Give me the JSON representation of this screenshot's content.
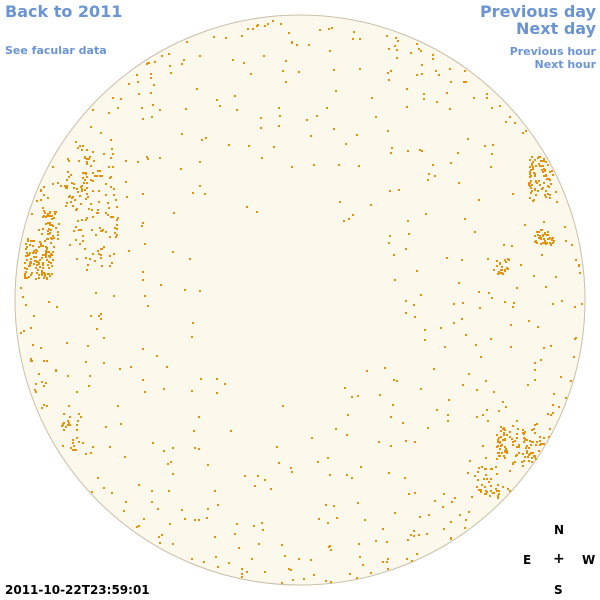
{
  "nav": {
    "back_label": "Back to 2011",
    "facular_label": "See facular data",
    "prev_day_label": "Previous day",
    "next_day_label": "Next day",
    "prev_hour_label": "Previous hour",
    "next_hour_label": "Next hour"
  },
  "compass": {
    "north": "N",
    "east": "E",
    "center": "+",
    "west": "W",
    "south": "S"
  },
  "timestamp": "2011-10-22T23:59:01",
  "colors": {
    "link": "#6a94d4",
    "disk_fill": "#fdf8ec",
    "disk_outline": "#c9bfa8",
    "feature": "#e8900a"
  },
  "icons": {
    "disk": "solar-disk-image"
  }
}
